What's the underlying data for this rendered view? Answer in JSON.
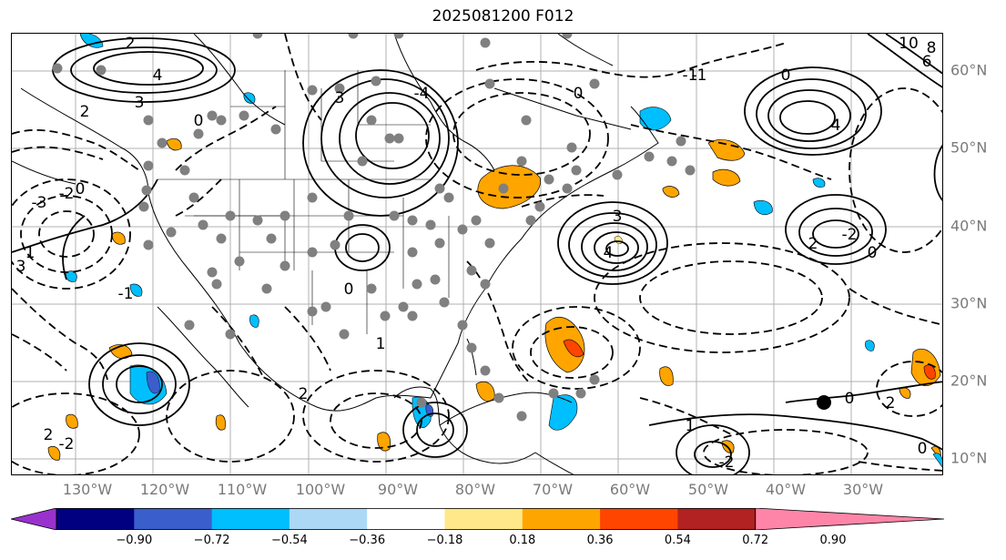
{
  "title": "2025081200 F012",
  "map": {
    "lon_labels": [
      "130°W",
      "120°W",
      "110°W",
      "100°W",
      "90°W",
      "80°W",
      "70°W",
      "60°W",
      "50°W",
      "40°W",
      "30°W"
    ],
    "lat_labels": [
      "60°N",
      "50°N",
      "40°N",
      "30°N",
      "20°N",
      "10°N"
    ],
    "contour_labels": [
      "2",
      "4",
      "3",
      "0",
      "2",
      "3",
      "-3",
      "-2",
      "1",
      "3",
      "-4",
      "4",
      "-1",
      "0",
      "6",
      "8",
      "10",
      "-1",
      "0",
      "4",
      "3",
      "2",
      "-2",
      "0",
      "-1",
      "0",
      "2",
      "-2",
      "0",
      "1",
      "2",
      "0",
      "0",
      "1",
      "-2",
      "2"
    ]
  },
  "colorbar": {
    "ticks": [
      "−0.90",
      "−0.72",
      "−0.54",
      "−0.36",
      "−0.18",
      "0.18",
      "0.36",
      "0.54",
      "0.72",
      "0.90"
    ],
    "colors": [
      "#9932cc",
      "#000080",
      "#3a5fcd",
      "#00bfff",
      "#add8f5",
      "#ffffff",
      "#ffe88a",
      "#ffa500",
      "#ff4500",
      "#b22222",
      "#ff85a8"
    ]
  }
}
